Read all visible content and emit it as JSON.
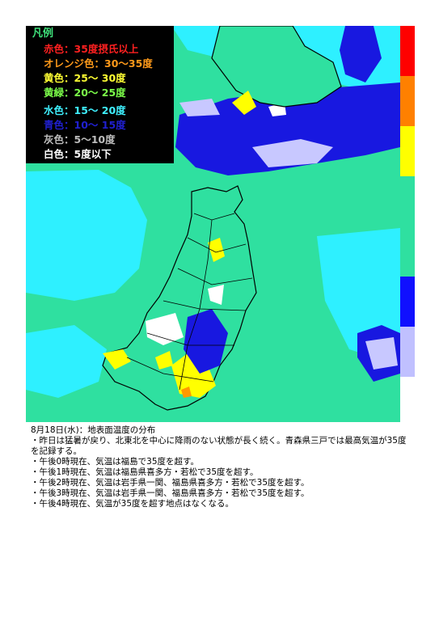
{
  "legend": {
    "title": "凡例",
    "items": [
      {
        "label": "赤色：35度摂氏以上",
        "color": "#ff2020"
      },
      {
        "label": "オレンジ色：30〜35度",
        "color": "#ff9a1a"
      },
      {
        "label": "黄色：25〜 30度",
        "color": "#ffff33"
      },
      {
        "label": "黄緑：20〜 25度",
        "color": "#7cff4a"
      },
      {
        "label": "水色：15〜 20度",
        "color": "#3ff0ff"
      },
      {
        "label": "青色：10〜 15度",
        "color": "#2020d0"
      },
      {
        "label": "灰色：5〜10度",
        "color": "#bdbdbd"
      },
      {
        "label": "白色：5度以下",
        "color": "#ffffff"
      }
    ]
  },
  "scale_colors": [
    "#ff0000",
    "#ff8000",
    "#ffff00",
    "#2fe0a0",
    "#2fe0a0",
    "#1010ff",
    "#c0c0ff"
  ],
  "map_colors": {
    "base": "#2fe0a0",
    "cyan": "#2ef0ff",
    "blue": "#1818e0",
    "lavender": "#c8c8ff",
    "white": "#ffffff",
    "yellow": "#ffff00",
    "orange": "#ff9900",
    "coast": "#000000"
  },
  "caption": {
    "date_line": "8月18日(水)：地表面温度の分布",
    "lines": [
      "・昨日は猛暑が戻り、北東北を中心に降雨のない状態が長く続く。青森県三戸では最高気温が35度を記録する。",
      "・午後0時現在、気温は福島で35度を超す。",
      "・午後1時現在、気温は福島県喜多方・若松で35度を超す。",
      "・午後2時現在、気温は岩手県一関、福島県喜多方・若松で35度を超す。",
      "・午後3時現在、気温は岩手県一関、福島県喜多方・若松で35度を超す。",
      "・午後4時現在、気温が35度を超す地点はなくなる。"
    ]
  }
}
